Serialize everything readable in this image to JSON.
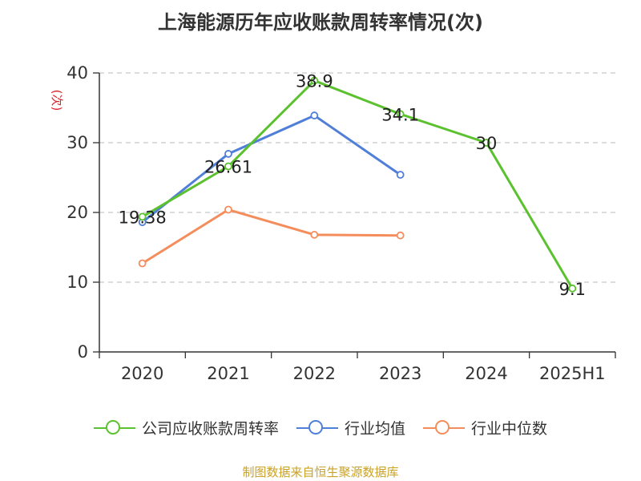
{
  "chart_data": {
    "type": "line",
    "title": "上海能源历年应收账款周转率情况(次)",
    "ylabel": "(次)",
    "xlabel": "",
    "categories": [
      "2020",
      "2021",
      "2022",
      "2023",
      "2024",
      "2025H1"
    ],
    "ylim": [
      0,
      40
    ],
    "yticks": [
      0,
      10,
      20,
      30,
      40
    ],
    "grid": true,
    "legend_position": "bottom",
    "series": [
      {
        "name": "公司应收账款周转率",
        "color": "#5bc12e",
        "values": [
          19.38,
          26.61,
          38.9,
          34.1,
          30,
          9.1
        ],
        "labels": [
          "19.38",
          "26.61",
          "38.9",
          "34.1",
          "30",
          "9.1"
        ]
      },
      {
        "name": "行业均值",
        "color": "#4f7fd8",
        "values": [
          18.6,
          28.4,
          33.9,
          25.4,
          null,
          null
        ]
      },
      {
        "name": "行业中位数",
        "color": "#f48d5b",
        "values": [
          12.7,
          20.4,
          16.8,
          16.7,
          null,
          null
        ]
      }
    ]
  },
  "source": "制图数据来自恒生聚源数据库"
}
